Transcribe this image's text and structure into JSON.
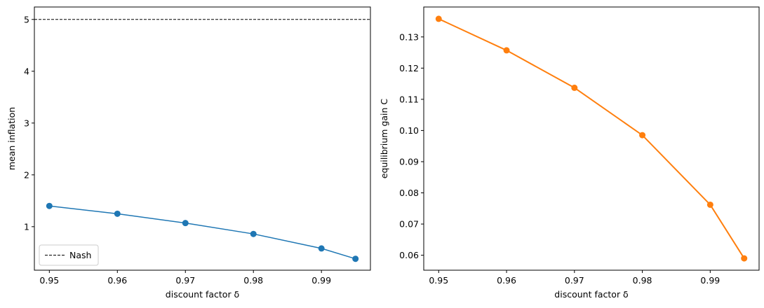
{
  "chart_data": [
    {
      "type": "line",
      "xlabel": "discount factor δ",
      "ylabel": "mean inflation",
      "xlim": [
        0.9478,
        0.9972
      ],
      "ylim": [
        0.16,
        5.24
      ],
      "xticks": [
        0.95,
        0.96,
        0.97,
        0.98,
        0.99
      ],
      "xtick_labels": [
        "0.95",
        "0.96",
        "0.97",
        "0.98",
        "0.99"
      ],
      "yticks": [
        1,
        2,
        3,
        4,
        5
      ],
      "ytick_labels": [
        "1",
        "2",
        "3",
        "4",
        "5"
      ],
      "grid": false,
      "legend": {
        "placement": "lower-left",
        "entries": [
          "Nash"
        ]
      },
      "series": [
        {
          "color": "#1f77b4",
          "marker": "circle",
          "x": [
            0.95,
            0.96,
            0.97,
            0.98,
            0.99,
            0.995
          ],
          "y": [
            1.4,
            1.25,
            1.07,
            0.86,
            0.58,
            0.38
          ]
        }
      ],
      "hlines": [
        {
          "name": "Nash",
          "y": 5.0,
          "color": "#000000",
          "style": "dashed"
        }
      ]
    },
    {
      "type": "line",
      "xlabel": "discount factor δ",
      "ylabel": "equilibrium gain C",
      "xlim": [
        0.9478,
        0.9972
      ],
      "ylim": [
        0.0552,
        0.1396
      ],
      "xticks": [
        0.95,
        0.96,
        0.97,
        0.98,
        0.99
      ],
      "xtick_labels": [
        "0.95",
        "0.96",
        "0.97",
        "0.98",
        "0.99"
      ],
      "yticks": [
        0.06,
        0.07,
        0.08,
        0.09,
        0.1,
        0.11,
        0.12,
        0.13
      ],
      "ytick_labels": [
        "0.06",
        "0.07",
        "0.08",
        "0.09",
        "0.10",
        "0.11",
        "0.12",
        "0.13"
      ],
      "grid": false,
      "series": [
        {
          "color": "#ff7f0e",
          "marker": "circle",
          "x": [
            0.95,
            0.96,
            0.97,
            0.98,
            0.99,
            0.995
          ],
          "y": [
            0.1358,
            0.1257,
            0.1137,
            0.0985,
            0.0762,
            0.059
          ]
        }
      ]
    }
  ]
}
